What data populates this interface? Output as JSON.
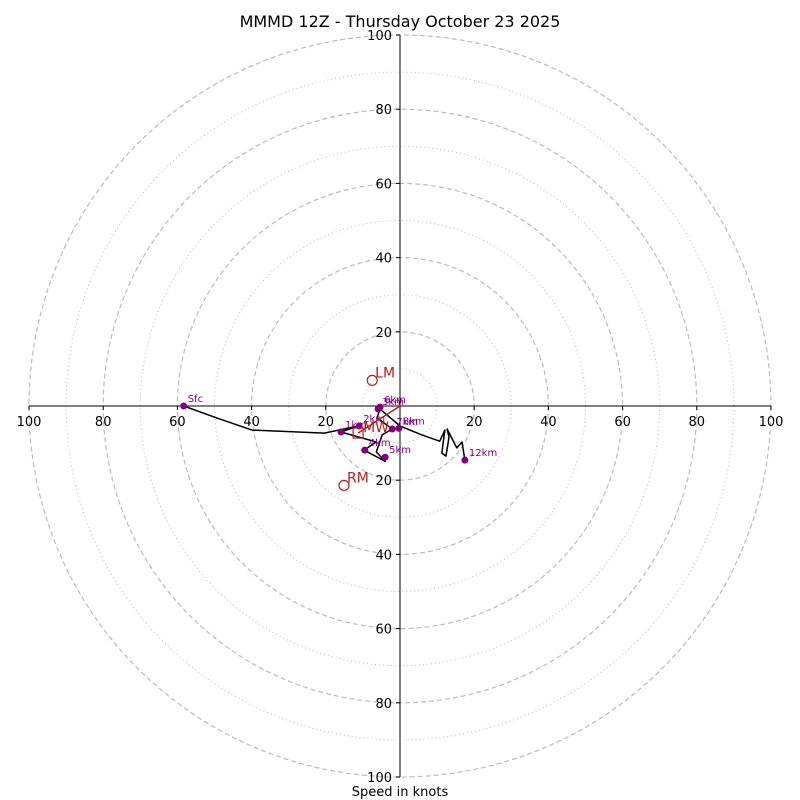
{
  "chart_data": {
    "type": "scatter",
    "title": "MMMD 12Z - Thursday October 23 2025",
    "xlabel": "Speed in knots",
    "ylabel": "",
    "xlim": [
      -100,
      100
    ],
    "ylim": [
      -100,
      100
    ],
    "rings_major": [
      20,
      40,
      60,
      80,
      100
    ],
    "rings_minor": [
      10,
      30,
      50,
      70,
      90
    ],
    "ticks": {
      "x": [
        {
          "value": -100,
          "label": "100"
        },
        {
          "value": -80,
          "label": "80"
        },
        {
          "value": -60,
          "label": "60"
        },
        {
          "value": -40,
          "label": "40"
        },
        {
          "value": -20,
          "label": "20"
        },
        {
          "value": 20,
          "label": "20"
        },
        {
          "value": 40,
          "label": "40"
        },
        {
          "value": 60,
          "label": "60"
        },
        {
          "value": 80,
          "label": "80"
        },
        {
          "value": 100,
          "label": "100"
        }
      ],
      "y": [
        {
          "value": 100,
          "label": "100"
        },
        {
          "value": 80,
          "label": "80"
        },
        {
          "value": 60,
          "label": "60"
        },
        {
          "value": 40,
          "label": "40"
        },
        {
          "value": 20,
          "label": "20"
        },
        {
          "value": -20,
          "label": "20"
        },
        {
          "value": -40,
          "label": "40"
        },
        {
          "value": -60,
          "label": "60"
        },
        {
          "value": -80,
          "label": "80"
        },
        {
          "value": -100,
          "label": "100"
        }
      ]
    },
    "grid": true,
    "hodograph_trace": [
      [
        -58.3,
        0.0
      ],
      [
        -49.4,
        -3.2
      ],
      [
        -39.9,
        -6.5
      ],
      [
        -20.4,
        -7.3
      ],
      [
        -11.3,
        -5.4
      ],
      [
        -15.9,
        -7.0
      ],
      [
        -6.4,
        -9.7
      ],
      [
        -9.7,
        -11.9
      ],
      [
        -4.0,
        -14.9
      ],
      [
        -6.4,
        -12.4
      ],
      [
        -4.8,
        -7.8
      ],
      [
        -2.1,
        -6.2
      ],
      [
        -6.2,
        -3.2
      ],
      [
        -5.4,
        -0.8
      ],
      [
        0.0,
        -5.4
      ],
      [
        5.9,
        -7.8
      ],
      [
        10.7,
        -9.5
      ],
      [
        12.1,
        -6.5
      ],
      [
        11.5,
        -10.8
      ],
      [
        11.3,
        -12.7
      ],
      [
        12.4,
        -13.5
      ],
      [
        13.2,
        -8.4
      ],
      [
        12.7,
        -6.2
      ],
      [
        15.3,
        -11.3
      ],
      [
        16.7,
        -9.7
      ],
      [
        17.5,
        -14.6
      ]
    ],
    "height_markers": [
      {
        "label": "Sfc",
        "x": -58.3,
        "y": 0.0
      },
      {
        "label": "1km",
        "x": -15.9,
        "y": -7.0
      },
      {
        "label": "2km",
        "x": -11.0,
        "y": -5.4
      },
      {
        "label": "3km",
        "x": -5.9,
        "y": -0.8
      },
      {
        "label": "4km",
        "x": -9.5,
        "y": -11.9
      },
      {
        "label": "5km",
        "x": -4.0,
        "y": -13.8
      },
      {
        "label": "6km",
        "x": -5.4,
        "y": -0.3
      },
      {
        "label": "7km",
        "x": -2.1,
        "y": -6.2
      },
      {
        "label": "8km",
        "x": -0.3,
        "y": -6.0
      },
      {
        "label": "12km",
        "x": 17.5,
        "y": -14.6
      }
    ],
    "storm_motion": [
      {
        "label": "LM",
        "x": -7.5,
        "y": 6.9
      },
      {
        "label": "RM",
        "x": -15.1,
        "y": -21.4
      },
      {
        "label": "MW",
        "x": -11.3,
        "y": -7.3
      }
    ],
    "shear_vector": {
      "from": [
        -11.3,
        -7.3
      ],
      "to": [
        0.0,
        0.0
      ]
    },
    "colors": {
      "trace": "#000000",
      "height_marker": "#800080",
      "storm_motion": "#b22222",
      "ring": "#bbbbbb",
      "axis": "#000000"
    }
  }
}
